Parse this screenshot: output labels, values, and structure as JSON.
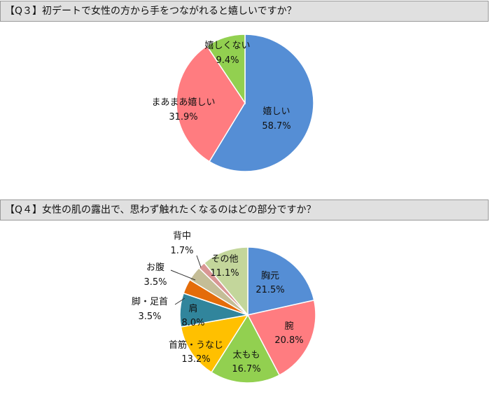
{
  "chart_data": [
    {
      "type": "pie",
      "title": "【Q３】初デートで女性の方から手をつながれると嬉しいですか？",
      "categories": [
        "嬉しい",
        "まあまあ嬉しい",
        "嬉しくない"
      ],
      "values": [
        58.7,
        31.9,
        9.4
      ],
      "value_labels": [
        "58.7%",
        "31.9%",
        "9.4%"
      ],
      "colors": [
        "#558ed5",
        "#ff7c80",
        "#92d050"
      ]
    },
    {
      "type": "pie",
      "title": "【Q４】女性の肌の露出で、思わず触れたくなるのはどの部分ですか？",
      "categories": [
        "胸元",
        "腕",
        "太もも",
        "首筋・うなじ",
        "肩",
        "脚・足首",
        "お腹",
        "背中",
        "その他"
      ],
      "values": [
        21.5,
        20.8,
        16.7,
        13.2,
        8.0,
        3.5,
        3.5,
        1.7,
        11.1
      ],
      "value_labels": [
        "21.5%",
        "20.8%",
        "16.7%",
        "13.2%",
        "8.0%",
        "3.5%",
        "3.5%",
        "1.7%",
        "11.1%"
      ],
      "colors": [
        "#558ed5",
        "#ff7c80",
        "#92d050",
        "#ffc000",
        "#31859c",
        "#e46c0a",
        "#c4bd97",
        "#d99694",
        "#c3d69b"
      ]
    }
  ]
}
